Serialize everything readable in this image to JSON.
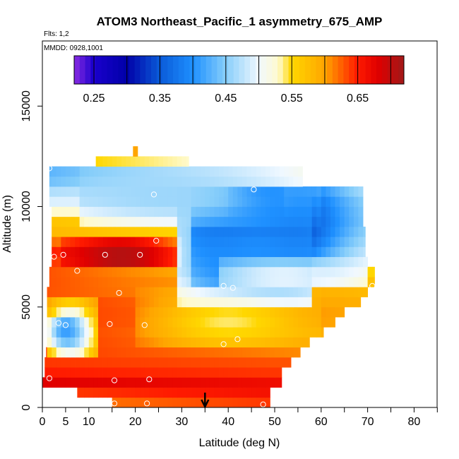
{
  "chart_data": {
    "type": "heatmap",
    "title": "ATOM3 Northeast_Pacific_1 asymmetry_675_AMP",
    "flights_note": "Flts: 1,2",
    "mmdd_note": "MMDD: 0928,1001",
    "xlabel": "Latitude (deg N)",
    "ylabel": "Altitude (m)",
    "xlim": [
      0,
      85
    ],
    "ylim": [
      0,
      17500
    ],
    "x_tick_labels": [
      {
        "value": 0,
        "text": "0"
      },
      {
        "value": 5,
        "text": "5"
      },
      {
        "value": 10,
        "text": "10"
      },
      {
        "value": 20,
        "text": "20"
      },
      {
        "value": 30,
        "text": "30"
      },
      {
        "value": 40,
        "text": "40"
      },
      {
        "value": 50,
        "text": "50"
      },
      {
        "value": 60,
        "text": "60"
      },
      {
        "value": 70,
        "text": "70"
      },
      {
        "value": 80,
        "text": "80"
      }
    ],
    "x_minor_ticks": [
      15,
      25,
      35,
      45,
      55,
      65,
      75,
      85
    ],
    "y_ticks": [
      {
        "value": 0,
        "text": "0"
      },
      {
        "value": 5000,
        "text": "5000"
      },
      {
        "value": 10000,
        "text": "10000"
      },
      {
        "value": 15000,
        "text": "15000"
      }
    ],
    "colorbar": {
      "min": 0.22,
      "max": 0.72,
      "tick_labels": [
        {
          "value": 0.25,
          "text": "0.25"
        },
        {
          "value": 0.35,
          "text": "0.35"
        },
        {
          "value": 0.45,
          "text": "0.45"
        },
        {
          "value": 0.55,
          "text": "0.55"
        },
        {
          "value": 0.65,
          "text": "0.65"
        }
      ],
      "divisions": [
        0.22,
        0.25,
        0.3,
        0.35,
        0.4,
        0.45,
        0.5,
        0.55,
        0.6,
        0.65,
        0.7,
        0.72
      ],
      "color_stops": [
        {
          "value": 0.22,
          "color": "#8a2be2"
        },
        {
          "value": 0.25,
          "color": "#1a00cc"
        },
        {
          "value": 0.3,
          "color": "#0000a8"
        },
        {
          "value": 0.35,
          "color": "#0a5ad8"
        },
        {
          "value": 0.4,
          "color": "#1e90ff"
        },
        {
          "value": 0.45,
          "color": "#87cefa"
        },
        {
          "value": 0.5,
          "color": "#f0f8ff"
        },
        {
          "value": 0.53,
          "color": "#fffacd"
        },
        {
          "value": 0.55,
          "color": "#ffd700"
        },
        {
          "value": 0.6,
          "color": "#ffa500"
        },
        {
          "value": 0.65,
          "color": "#ff1a00"
        },
        {
          "value": 0.68,
          "color": "#e00000"
        },
        {
          "value": 0.72,
          "color": "#a01818"
        }
      ]
    },
    "alt_bins": [
      {
        "alt": 250,
        "x0": 15.0,
        "x1": 49.0,
        "v0": 0.62,
        "v1": 0.64
      },
      {
        "alt": 750,
        "x0": 7.5,
        "x1": 49.0,
        "v0": 0.64,
        "v1": 0.66
      },
      {
        "alt": 1250,
        "x0": 0.0,
        "x1": 51.5,
        "v0": 0.68,
        "v1": 0.665
      },
      {
        "alt": 1750,
        "x0": 0.5,
        "x1": 51.5,
        "v0": 0.65,
        "v1": 0.64
      },
      {
        "alt": 2250,
        "x0": 0.5,
        "x1": 53.5,
        "v0": 0.64,
        "v1": 0.63
      },
      {
        "alt": 2750,
        "x0": 0.8,
        "x1": 55.5,
        "v0": 0.64,
        "v1": 0.61
      },
      {
        "alt": 3250,
        "x0": 1.0,
        "x1": 57.5,
        "v0": 0.64,
        "v1": 0.6
      },
      {
        "alt": 3750,
        "x0": 1.0,
        "x1": 60.5,
        "v0": 0.64,
        "v1": 0.59
      },
      {
        "alt": 4250,
        "x0": 1.0,
        "x1": 63.0,
        "v0": 0.64,
        "v1": 0.6
      },
      {
        "alt": 4750,
        "x0": 1.0,
        "x1": 65.0,
        "v0": 0.64,
        "v1": 0.6
      },
      {
        "alt": 5250,
        "x0": 1.0,
        "x1": 68.5,
        "v0": 0.64,
        "v1": 0.59
      },
      {
        "alt": 5750,
        "x0": 1.0,
        "x1": 70.0,
        "v0": 0.63,
        "v1": 0.58
      },
      {
        "alt": 6250,
        "x0": 1.5,
        "x1": 71.5,
        "v0": 0.63,
        "v1": 0.57
      },
      {
        "alt": 6750,
        "x0": 1.5,
        "x1": 71.5,
        "v0": 0.63,
        "v1": 0.55
      },
      {
        "alt": 7250,
        "x0": 2.0,
        "x1": 70.0,
        "v0": 0.64,
        "v1": 0.54
      },
      {
        "alt": 7750,
        "x0": 2.0,
        "x1": 69.5,
        "v0": 0.65,
        "v1": 0.53
      },
      {
        "alt": 8250,
        "x0": 2.0,
        "x1": 69.5,
        "v0": 0.62,
        "v1": 0.52
      },
      {
        "alt": 8750,
        "x0": 2.0,
        "x1": 69.5,
        "v0": 0.58,
        "v1": 0.51
      },
      {
        "alt": 9250,
        "x0": 2.0,
        "x1": 69.0,
        "v0": 0.57,
        "v1": 0.5
      },
      {
        "alt": 9750,
        "x0": 2.0,
        "x1": 69.0,
        "v0": 0.53,
        "v1": 0.5
      },
      {
        "alt": 10250,
        "x0": 1.5,
        "x1": 69.0,
        "v0": 0.49,
        "v1": 0.5
      },
      {
        "alt": 10750,
        "x0": 1.5,
        "x1": 69.0,
        "v0": 0.47,
        "v1": 0.51
      },
      {
        "alt": 11250,
        "x0": 1.5,
        "x1": 56.0,
        "v0": 0.44,
        "v1": 0.52
      },
      {
        "alt": 11750,
        "x0": 1.5,
        "x1": 56.0,
        "v0": 0.43,
        "v1": 0.52
      },
      {
        "alt": 12250,
        "x0": 11.5,
        "x1": 31.5,
        "v0": 0.55,
        "v1": 0.53
      },
      {
        "alt": 12750,
        "x0": 19.5,
        "x1": 20.5,
        "v0": 0.6,
        "v1": 0.6
      }
    ],
    "anomalies": [
      {
        "x0": 4,
        "x1": 30,
        "y0": 6800,
        "y1": 8500,
        "cx": 17,
        "cy": 7500,
        "rx": 12,
        "ry": 1200,
        "v": 0.71
      },
      {
        "x0": 32,
        "x1": 70,
        "y0": 5800,
        "y1": 11100,
        "cx": 46,
        "cy": 9000,
        "rx": 20,
        "ry": 3200,
        "v": 0.28
      },
      {
        "x0": 40,
        "x1": 52,
        "y0": 9500,
        "y1": 11100,
        "cx": 45,
        "cy": 10300,
        "rx": 6,
        "ry": 1000,
        "v": 0.23
      },
      {
        "x0": 29,
        "x1": 58,
        "y0": 5000,
        "y1": 11100,
        "cx": 46,
        "cy": 7500,
        "rx": 24,
        "ry": 3500,
        "v": 0.4
      },
      {
        "x0": 8,
        "x1": 60,
        "y0": 9000,
        "y1": 12000,
        "cx": 28,
        "cy": 10500,
        "rx": 28,
        "ry": 1500,
        "v": 0.46
      },
      {
        "x0": 1,
        "x1": 12,
        "y0": 2500,
        "y1": 5300,
        "cx": 6,
        "cy": 3700,
        "rx": 6,
        "ry": 1700,
        "v": 0.46
      },
      {
        "x0": 1,
        "x1": 12,
        "y0": 3000,
        "y1": 4600,
        "cx": 5,
        "cy": 3900,
        "rx": 3,
        "ry": 800,
        "v": 0.41
      },
      {
        "x0": 20,
        "x1": 60,
        "y0": 3000,
        "y1": 6000,
        "cx": 40,
        "cy": 4300,
        "rx": 16,
        "ry": 1400,
        "v": 0.54
      },
      {
        "x0": 38,
        "x1": 70,
        "y0": 5800,
        "y1": 7500,
        "cx": 52,
        "cy": 6500,
        "rx": 18,
        "ry": 900,
        "v": 0.5
      }
    ],
    "flight_points": [
      {
        "x": 1.5,
        "y": 1450
      },
      {
        "x": 15.5,
        "y": 200
      },
      {
        "x": 22.5,
        "y": 200
      },
      {
        "x": 47.5,
        "y": 150
      },
      {
        "x": 15.5,
        "y": 1350
      },
      {
        "x": 23.0,
        "y": 1400
      },
      {
        "x": 5.0,
        "y": 4100
      },
      {
        "x": 14.5,
        "y": 4150
      },
      {
        "x": 22.0,
        "y": 4100
      },
      {
        "x": 3.5,
        "y": 4200
      },
      {
        "x": 39.0,
        "y": 3150
      },
      {
        "x": 42.0,
        "y": 3400
      },
      {
        "x": 16.5,
        "y": 5700
      },
      {
        "x": 39.0,
        "y": 6050
      },
      {
        "x": 41.0,
        "y": 5950
      },
      {
        "x": 7.5,
        "y": 6800
      },
      {
        "x": 2.5,
        "y": 7500
      },
      {
        "x": 4.5,
        "y": 7600
      },
      {
        "x": 13.5,
        "y": 7600
      },
      {
        "x": 21.0,
        "y": 7600
      },
      {
        "x": 24.5,
        "y": 8300
      },
      {
        "x": 24.0,
        "y": 10600
      },
      {
        "x": 45.5,
        "y": 10850
      },
      {
        "x": 1.5,
        "y": 11900
      },
      {
        "x": 71.0,
        "y": 6050
      }
    ],
    "marker_latitude": 35
  }
}
